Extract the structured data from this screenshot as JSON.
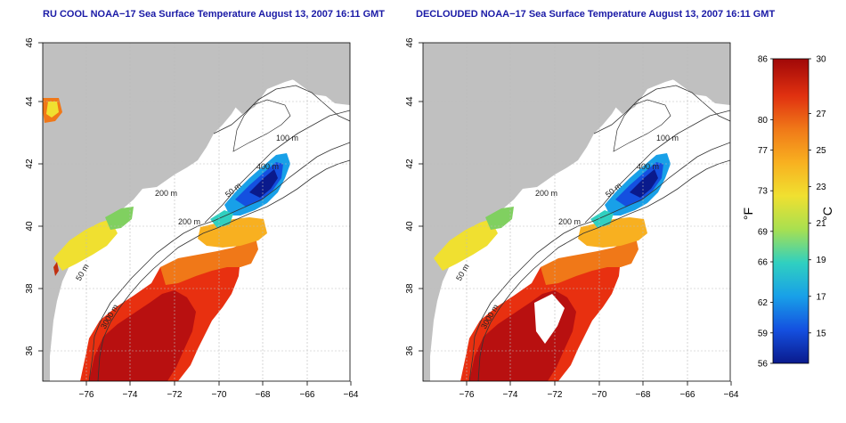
{
  "panels": [
    {
      "title": "RU COOL NOAA−17 Sea Surface Temperature August 13, 2007 16:11 GMT",
      "contours": [
        "100 m",
        "400 m",
        "200 m",
        "50 m",
        "200 m",
        "50 m",
        "3000 m"
      ]
    },
    {
      "title": "DECLOUDED NOAA−17 Sea Surface Temperature August 13, 2007 16:11 GMT",
      "contours": [
        "100 m",
        "400 m",
        "200 m",
        "50 m",
        "200 m",
        "50 m",
        "3000 m"
      ]
    }
  ],
  "lon_ticks": [
    "−76",
    "−74",
    "−72",
    "−70",
    "−68",
    "−66",
    "−64"
  ],
  "lat_ticks": [
    "36",
    "38",
    "40",
    "42",
    "44",
    "46"
  ],
  "colorbar": {
    "f_label": "°F",
    "c_label": "°C",
    "f_ticks": [
      "56",
      "59",
      "62",
      "66",
      "69",
      "73",
      "77",
      "80",
      "86"
    ],
    "c_ticks": [
      "15",
      "17",
      "19",
      "21",
      "23",
      "25",
      "27",
      "30"
    ],
    "f_range": [
      56,
      86
    ],
    "colors": [
      "#0a1a8c",
      "#1450e0",
      "#18a0e8",
      "#30d0c0",
      "#a8e050",
      "#f0e030",
      "#f8b020",
      "#f07818",
      "#e03010",
      "#a00808"
    ]
  },
  "colors": {
    "land": "#c0c0c0",
    "ocean": "#ffffff",
    "title": "#1a1aa6"
  }
}
